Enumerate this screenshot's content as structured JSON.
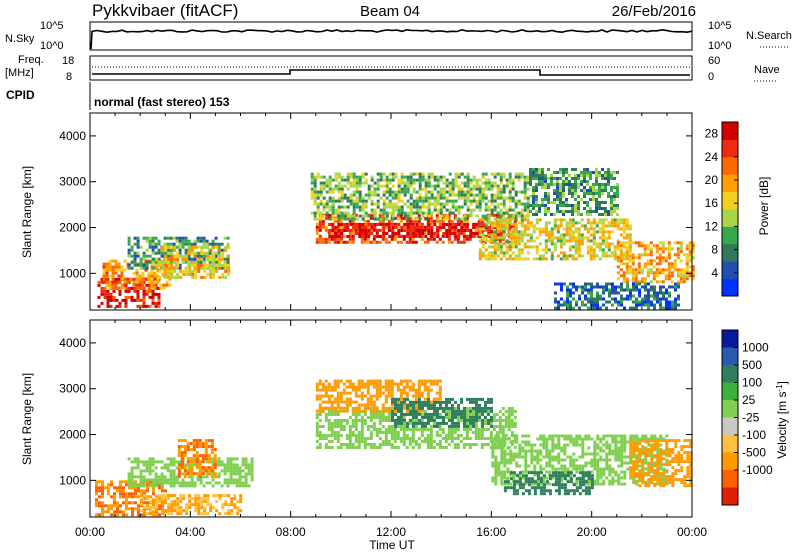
{
  "header": {
    "station": "Pykkvibaer (fitACF)",
    "beam": "Beam 04",
    "date": "26/Feb/2016"
  },
  "top_panels": {
    "nsky_label": "N.Sky",
    "nsearch_label": "N.Search",
    "nsky_ticks": [
      "10^5",
      "10^0"
    ],
    "nsearch_ticks": [
      "10^5",
      "10^0"
    ],
    "freq_label": "Freq.",
    "freq_unit": "[MHz]",
    "freq_ticks": [
      "18",
      "8"
    ],
    "nave_label": "Nave",
    "nave_ticks": [
      "60",
      "0"
    ],
    "cpid_label": "CPID",
    "cpid_text": "normal (fast stereo) 153"
  },
  "time_axis": {
    "label": "Time UT",
    "ticks": [
      "00:00",
      "04:00",
      "08:00",
      "12:00",
      "16:00",
      "20:00",
      "00:00"
    ]
  },
  "colors": {
    "power_scale": [
      "#0033ff",
      "#1f4fb0",
      "#2f7a5a",
      "#38a84f",
      "#a8d648",
      "#f2d020",
      "#ffa000",
      "#ff6a00",
      "#ee2b10",
      "#d40000"
    ],
    "velocity_scale": [
      "#0a1aa0",
      "#2a5ab0",
      "#2f7f5f",
      "#3bb03a",
      "#80d050",
      "#c8c8c0",
      "#ffc040",
      "#ff9a00",
      "#ff6000",
      "#e02000"
    ]
  },
  "chart_data": [
    {
      "type": "heatmap",
      "title": "Power",
      "xlabel": "Time UT",
      "ylabel": "Slant Range [km]",
      "x_ticks": [
        "00:00",
        "04:00",
        "08:00",
        "12:00",
        "16:00",
        "20:00",
        "00:00"
      ],
      "x_range_hours": [
        0,
        24
      ],
      "y_ticks": [
        1000,
        2000,
        3000,
        4000
      ],
      "ylim": [
        200,
        4500
      ],
      "colorbar": {
        "label": "Power [dB]",
        "ticks": [
          4,
          8,
          12,
          16,
          20,
          24,
          28
        ],
        "range": [
          0,
          30
        ]
      },
      "regions": [
        {
          "t": [
            0.3,
            2.8
          ],
          "r": [
            250,
            900
          ],
          "v": 28
        },
        {
          "t": [
            0.5,
            3.2
          ],
          "r": [
            700,
            1300
          ],
          "v": 20
        },
        {
          "t": [
            1.5,
            5.5
          ],
          "r": [
            1100,
            1800
          ],
          "v": 9
        },
        {
          "t": [
            2.6,
            5.5
          ],
          "r": [
            900,
            1600
          ],
          "v": 17
        },
        {
          "t": [
            9.0,
            17.0
          ],
          "r": [
            1700,
            2300
          ],
          "v": 24
        },
        {
          "t": [
            9.5,
            16.5
          ],
          "r": [
            1800,
            2100
          ],
          "v": 29
        },
        {
          "t": [
            8.8,
            17.5
          ],
          "r": [
            2200,
            3200
          ],
          "v": 12
        },
        {
          "t": [
            15.5,
            21.5
          ],
          "r": [
            1300,
            2200
          ],
          "v": 16
        },
        {
          "t": [
            17.5,
            21.0
          ],
          "r": [
            2300,
            3300
          ],
          "v": 10
        },
        {
          "t": [
            21.0,
            24.0
          ],
          "r": [
            800,
            1700
          ],
          "v": 19
        },
        {
          "t": [
            18.5,
            23.5
          ],
          "r": [
            250,
            800
          ],
          "v": 6
        }
      ]
    },
    {
      "type": "heatmap",
      "title": "Velocity",
      "xlabel": "Time UT",
      "ylabel": "Slant Range [km]",
      "x_ticks": [
        "00:00",
        "04:00",
        "08:00",
        "12:00",
        "16:00",
        "20:00",
        "00:00"
      ],
      "x_range_hours": [
        0,
        24
      ],
      "y_ticks": [
        1000,
        2000,
        3000,
        4000
      ],
      "ylim": [
        200,
        4500
      ],
      "colorbar": {
        "label": "Velocity [m s^-1]",
        "ticks": [
          1000,
          500,
          100,
          25,
          -25,
          -100,
          -500,
          -1000
        ]
      },
      "regions": [
        {
          "t": [
            0.2,
            3.0
          ],
          "r": [
            250,
            1000
          ],
          "v": -500
        },
        {
          "t": [
            2.0,
            6.0
          ],
          "r": [
            300,
            700
          ],
          "v": -100
        },
        {
          "t": [
            1.5,
            6.5
          ],
          "r": [
            900,
            1500
          ],
          "v": 0
        },
        {
          "t": [
            3.5,
            5.0
          ],
          "r": [
            1100,
            1900
          ],
          "v": -500
        },
        {
          "t": [
            9.0,
            17.0
          ],
          "r": [
            1700,
            2600
          ],
          "v": 0
        },
        {
          "t": [
            9.0,
            14.0
          ],
          "r": [
            2500,
            3200
          ],
          "v": -300
        },
        {
          "t": [
            12.0,
            16.0
          ],
          "r": [
            2200,
            2800
          ],
          "v": 300
        },
        {
          "t": [
            16.0,
            23.0
          ],
          "r": [
            900,
            2000
          ],
          "v": 0
        },
        {
          "t": [
            16.5,
            20.0
          ],
          "r": [
            700,
            1200
          ],
          "v": 200
        },
        {
          "t": [
            21.5,
            24.0
          ],
          "r": [
            900,
            1900
          ],
          "v": -300
        }
      ]
    }
  ]
}
